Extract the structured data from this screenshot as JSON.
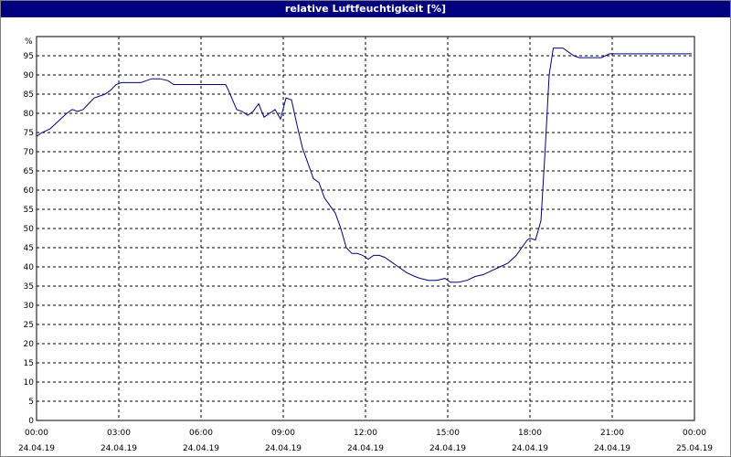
{
  "window": {
    "title": "relative Luftfeuchtigkeit [%]"
  },
  "chart_data": {
    "type": "line",
    "title": "relative Luftfeuchtigkeit [%]",
    "ylabel": "%",
    "ylim": [
      0,
      100
    ],
    "xlim_hours": [
      0,
      24
    ],
    "grid": true,
    "y_ticks": [
      "0",
      "5",
      "10",
      "15",
      "20",
      "25",
      "30",
      "35",
      "40",
      "45",
      "50",
      "55",
      "60",
      "65",
      "70",
      "75",
      "80",
      "85",
      "90",
      "95"
    ],
    "x_ticks": [
      {
        "time": "00:00",
        "date": "24.04.19",
        "hour": 0
      },
      {
        "time": "03:00",
        "date": "24.04.19",
        "hour": 3
      },
      {
        "time": "06:00",
        "date": "24.04.19",
        "hour": 6
      },
      {
        "time": "09:00",
        "date": "24.04.19",
        "hour": 9
      },
      {
        "time": "12:00",
        "date": "24.04.19",
        "hour": 12
      },
      {
        "time": "15:00",
        "date": "24.04.19",
        "hour": 15
      },
      {
        "time": "18:00",
        "date": "24.04.19",
        "hour": 18
      },
      {
        "time": "21:00",
        "date": "24.04.19",
        "hour": 21
      },
      {
        "time": "00:00",
        "date": "25.04.19",
        "hour": 24
      }
    ],
    "series": [
      {
        "color": "#000080",
        "x": [
          0,
          0.2,
          0.5,
          0.8,
          1.1,
          1.3,
          1.5,
          1.7,
          1.9,
          2.1,
          2.3,
          2.5,
          2.7,
          2.9,
          3.1,
          3.3,
          3.5,
          3.8,
          4.0,
          4.2,
          4.5,
          4.8,
          5.0,
          5.3,
          5.6,
          6.0,
          6.3,
          6.6,
          6.9,
          7.0,
          7.3,
          7.5,
          7.7,
          7.9,
          8.1,
          8.3,
          8.5,
          8.7,
          8.9,
          9.1,
          9.3,
          9.5,
          9.7,
          9.9,
          10.1,
          10.3,
          10.5,
          10.7,
          10.9,
          11.1,
          11.3,
          11.5,
          11.7,
          11.9,
          12.1,
          12.3,
          12.5,
          12.7,
          12.9,
          13.2,
          13.5,
          13.8,
          14.0,
          14.3,
          14.6,
          14.9,
          15.1,
          15.4,
          15.7,
          16.0,
          16.3,
          16.6,
          16.9,
          17.2,
          17.5,
          17.7,
          17.9,
          18.0,
          18.2,
          18.4,
          18.55,
          18.7,
          18.85,
          19.0,
          19.2,
          19.4,
          19.6,
          19.8,
          20.0,
          20.3,
          20.6,
          20.9,
          21.2,
          21.5,
          22.0,
          22.5,
          23.0,
          23.5,
          23.9
        ],
        "y": [
          74,
          75,
          76,
          78,
          80,
          81,
          80.5,
          81,
          82.5,
          84,
          84.5,
          85,
          86,
          87.5,
          88,
          88,
          88,
          88,
          88.5,
          89,
          89,
          88.5,
          87.5,
          87.5,
          87.5,
          87.5,
          87.5,
          87.5,
          87.5,
          86,
          81,
          80.5,
          79.5,
          80.5,
          82.5,
          79,
          80,
          81,
          78.5,
          84,
          83.5,
          77,
          71,
          67,
          63,
          62,
          58,
          56,
          54,
          50,
          45,
          43.5,
          43.5,
          43,
          42,
          43,
          43,
          42.5,
          41.5,
          40,
          38.5,
          37.5,
          37,
          36.5,
          36.5,
          37,
          36,
          36,
          36.5,
          37.5,
          38,
          39,
          40,
          41,
          43,
          45,
          47,
          47.5,
          47,
          52,
          70,
          90,
          97,
          97,
          97,
          96,
          95,
          94.5,
          94.5,
          94.5,
          94.5,
          95.5,
          95.5,
          95.5,
          95.5,
          95.5,
          95.5,
          95.5,
          95.5
        ]
      }
    ]
  }
}
